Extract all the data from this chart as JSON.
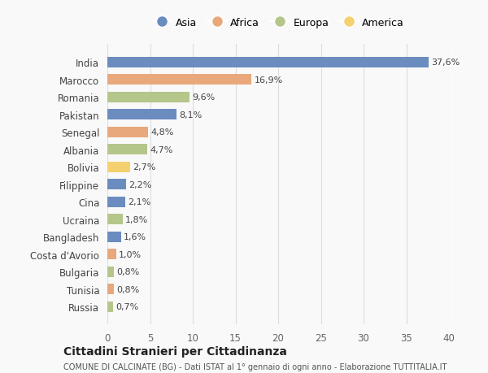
{
  "countries": [
    "India",
    "Marocco",
    "Romania",
    "Pakistan",
    "Senegal",
    "Albania",
    "Bolivia",
    "Filippine",
    "Cina",
    "Ucraina",
    "Bangladesh",
    "Costa d'Avorio",
    "Bulgaria",
    "Tunisia",
    "Russia"
  ],
  "values": [
    37.6,
    16.9,
    9.6,
    8.1,
    4.8,
    4.7,
    2.7,
    2.2,
    2.1,
    1.8,
    1.6,
    1.0,
    0.8,
    0.8,
    0.7
  ],
  "labels": [
    "37,6%",
    "16,9%",
    "9,6%",
    "8,1%",
    "4,8%",
    "4,7%",
    "2,7%",
    "2,2%",
    "2,1%",
    "1,8%",
    "1,6%",
    "1,0%",
    "0,8%",
    "0,8%",
    "0,7%"
  ],
  "continents": [
    "Asia",
    "Africa",
    "Europa",
    "Asia",
    "Africa",
    "Europa",
    "America",
    "Asia",
    "Asia",
    "Europa",
    "Asia",
    "Africa",
    "Europa",
    "Africa",
    "Europa"
  ],
  "continent_colors": {
    "Asia": "#6b8cbf",
    "Africa": "#e8a87c",
    "Europa": "#b5c68a",
    "America": "#f5d06e"
  },
  "legend_order": [
    "Asia",
    "Africa",
    "Europa",
    "America"
  ],
  "title": "Cittadini Stranieri per Cittadinanza",
  "subtitle": "COMUNE DI CALCINATE (BG) - Dati ISTAT al 1° gennaio di ogni anno - Elaborazione TUTTITALIA.IT",
  "xlim": [
    0,
    40
  ],
  "xticks": [
    0,
    5,
    10,
    15,
    20,
    25,
    30,
    35,
    40
  ],
  "background_color": "#f9f9f9",
  "bar_height": 0.6,
  "grid_color": "#dddddd"
}
